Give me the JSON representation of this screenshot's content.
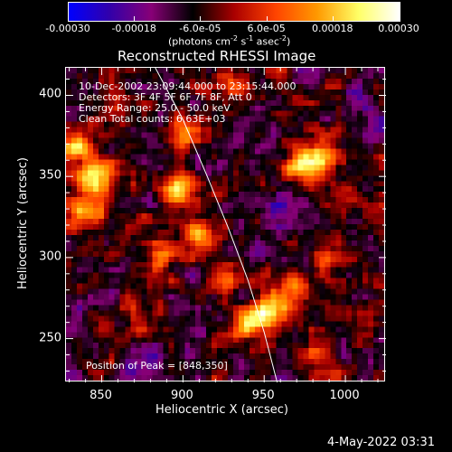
{
  "colorbar": {
    "ticks": [
      "-0.00030",
      "-0.00018",
      "-6.0e-05",
      "6.0e-05",
      "0.00018",
      "0.00030"
    ],
    "units_main": "(photons cm",
    "units_exp1": "-2",
    "units_s": " s",
    "units_exp2": "-1",
    "units_asec": " asec",
    "units_exp3": "-2",
    "units_close": ")",
    "stops": [
      "#0000ff",
      "#3300aa",
      "#880077",
      "#000000",
      "#aa0000",
      "#ff4400",
      "#ff9900",
      "#ffff66",
      "#ffffff"
    ]
  },
  "title": "Reconstructed RHESSI Image",
  "info": {
    "time_range": "10-Dec-2002 23:09:44.000 to 23:15:44.000",
    "detectors": "Detectors: 3F 4F 5F 6F 7F 8F, Att 0",
    "energy": "Energy Range: 25.0 - 50.0 keV",
    "clean": "Clean     Total counts: 6.63E+03",
    "peak": "Position of Peak = [848,350]"
  },
  "xlabel": "Heliocentric X (arcsec)",
  "ylabel": "Heliocentric Y (arcsec)",
  "footer_date": "4-May-2022 03:31",
  "chart_data": {
    "type": "heatmap",
    "title": "Reconstructed RHESSI Image",
    "xlabel": "Heliocentric X (arcsec)",
    "ylabel": "Heliocentric Y (arcsec)",
    "xlim": [
      828,
      1025
    ],
    "ylim": [
      223,
      417
    ],
    "x_ticks": [
      850,
      900,
      950,
      1000
    ],
    "y_ticks": [
      250,
      300,
      350,
      400
    ],
    "x_tick_labels": [
      "850",
      "900",
      "950",
      "1000"
    ],
    "y_tick_labels": [
      "250",
      "300",
      "350",
      "400"
    ],
    "color_range": [
      -0.0003,
      0.0003
    ],
    "peak_position": [
      848,
      350
    ],
    "limb_arc": [
      [
        883,
        417
      ],
      [
        900,
        385
      ],
      [
        915,
        350
      ],
      [
        928,
        318
      ],
      [
        940,
        286
      ],
      [
        950,
        254
      ],
      [
        958,
        223
      ]
    ],
    "blobs": [
      {
        "x": 848,
        "y": 350,
        "w": 0.0003
      },
      {
        "x": 835,
        "y": 370,
        "w": 0.00025
      },
      {
        "x": 840,
        "y": 330,
        "w": 0.0002
      },
      {
        "x": 900,
        "y": 340,
        "w": 0.00028
      },
      {
        "x": 910,
        "y": 310,
        "w": 0.00022
      },
      {
        "x": 905,
        "y": 375,
        "w": 0.00015
      },
      {
        "x": 885,
        "y": 300,
        "w": 0.00015
      },
      {
        "x": 940,
        "y": 260,
        "w": 0.00025
      },
      {
        "x": 955,
        "y": 265,
        "w": 0.00025
      },
      {
        "x": 970,
        "y": 280,
        "w": 0.0002
      },
      {
        "x": 975,
        "y": 355,
        "w": 0.00028
      },
      {
        "x": 990,
        "y": 365,
        "w": 0.0002
      },
      {
        "x": 1000,
        "y": 340,
        "w": 0.00015
      },
      {
        "x": 990,
        "y": 300,
        "w": 0.00015
      },
      {
        "x": 985,
        "y": 240,
        "w": 0.00015
      },
      {
        "x": 870,
        "y": 260,
        "w": 0.00012
      },
      {
        "x": 935,
        "y": 405,
        "w": 0.00014
      },
      {
        "x": 960,
        "y": 330,
        "w": -0.00012
      },
      {
        "x": 880,
        "y": 230,
        "w": -0.0001
      },
      {
        "x": 1010,
        "y": 395,
        "w": -0.0001
      },
      {
        "x": 860,
        "y": 395,
        "w": 0.0001
      },
      {
        "x": 1015,
        "y": 255,
        "w": 0.00012
      },
      {
        "x": 925,
        "y": 285,
        "w": 0.00015
      }
    ]
  }
}
